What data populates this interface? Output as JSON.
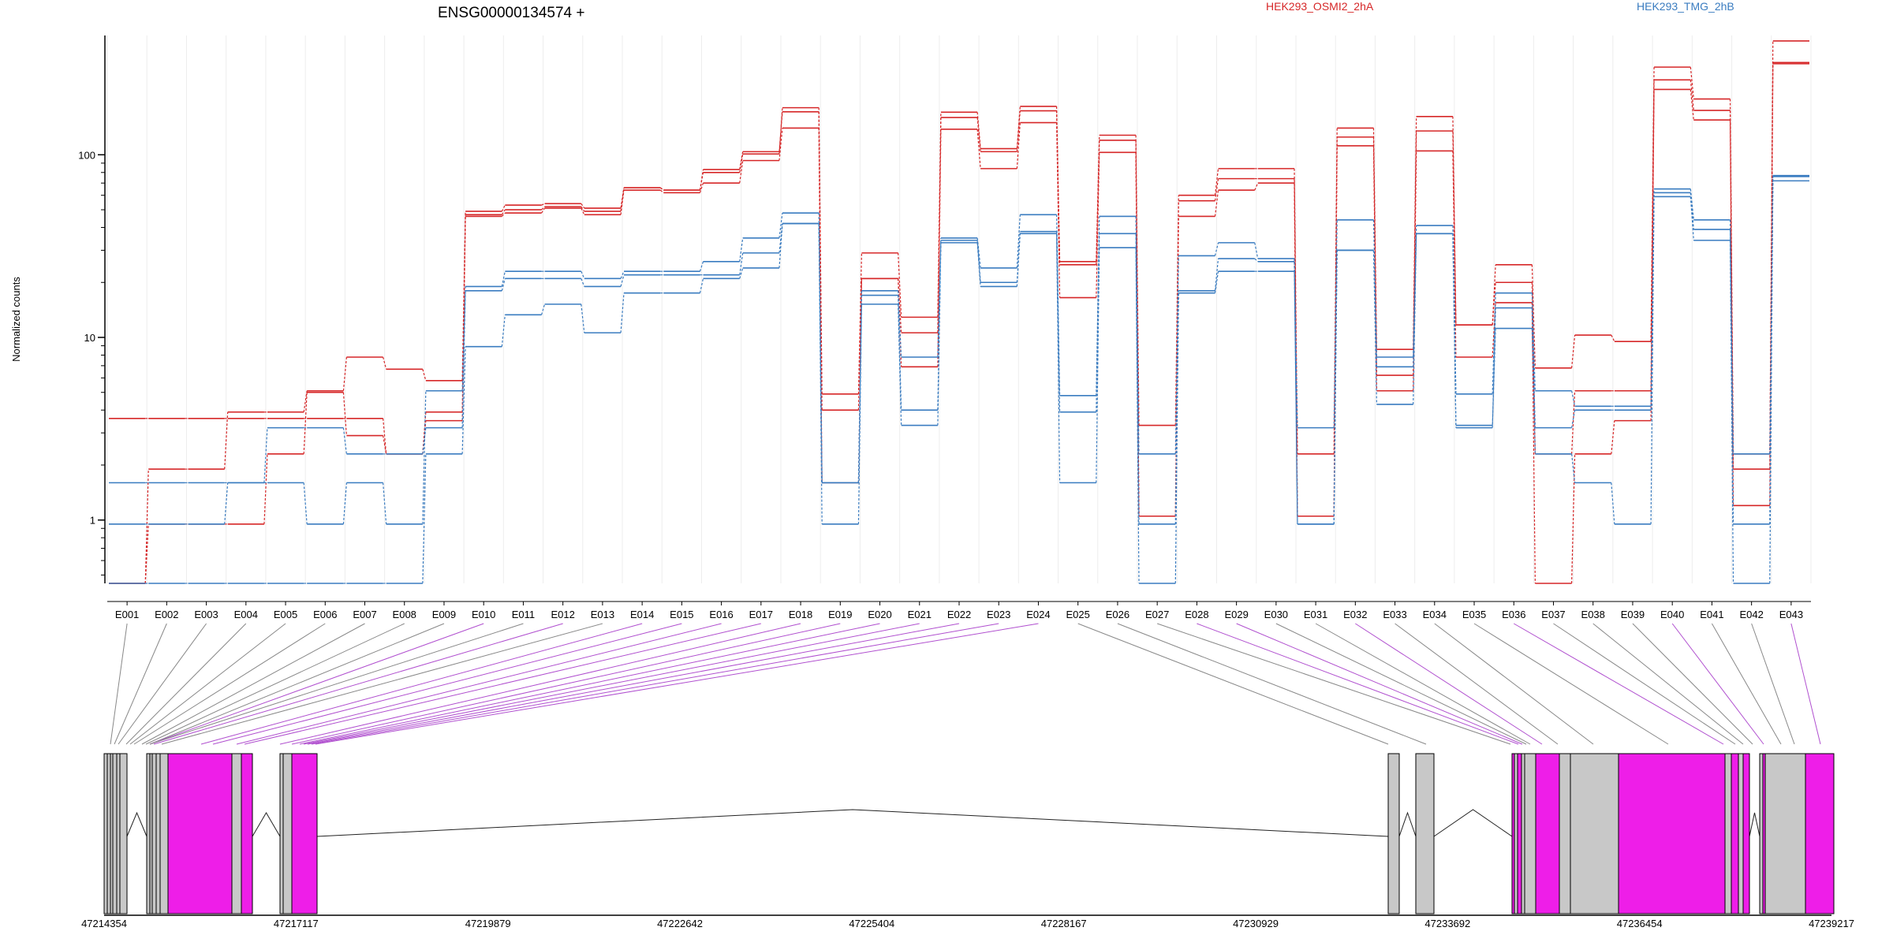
{
  "chart_data": {
    "type": "line",
    "title": "ENSG00000134574 +",
    "ylabel": "Normalized counts",
    "yscale": "log",
    "ylim": [
      0.45,
      450
    ],
    "y_ticks": [
      1,
      10,
      100
    ],
    "y_tick_labels": [
      "1",
      "10",
      "100"
    ],
    "legend": [
      {
        "name": "HEK293_OSMI2_2hA",
        "color": "#d62728"
      },
      {
        "name": "HEK293_TMG_2hB",
        "color": "#3a7cc0"
      }
    ],
    "categories": [
      "E001",
      "E002",
      "E003",
      "E004",
      "E005",
      "E006",
      "E007",
      "E008",
      "E009",
      "E010",
      "E011",
      "E012",
      "E013",
      "E014",
      "E015",
      "E016",
      "E017",
      "E018",
      "E019",
      "E020",
      "E021",
      "E022",
      "E023",
      "E024",
      "E025",
      "E026",
      "E027",
      "E028",
      "E029",
      "E030",
      "E031",
      "E032",
      "E033",
      "E034",
      "E035",
      "E036",
      "E037",
      "E038",
      "E039",
      "E040",
      "E041",
      "E042",
      "E043"
    ],
    "series": [
      {
        "group": "HEK293_OSMI2_2hA",
        "color": "#d62728",
        "values": [
          3.6,
          3.6,
          3.6,
          3.6,
          3.6,
          3.6,
          3.6,
          2.3,
          3.5,
          47,
          50,
          52,
          49,
          66,
          64,
          80,
          101,
          181,
          4.9,
          29,
          12.9,
          171,
          108,
          184,
          26,
          128,
          3.3,
          60,
          84,
          84,
          2.3,
          140,
          8.6,
          162,
          11.7,
          25,
          6.8,
          10.3,
          9.5,
          302,
          202,
          2.3,
          420
        ]
      },
      {
        "group": "HEK293_OSMI2_2hA",
        "color": "#d62728",
        "values": [
          0.45,
          1.9,
          1.9,
          3.9,
          3.9,
          5.1,
          7.8,
          6.7,
          5.8,
          49,
          53,
          54,
          51,
          66,
          64,
          83,
          104,
          172,
          4.0,
          21,
          10.6,
          160,
          104,
          174,
          25,
          120,
          1.05,
          56,
          74,
          74,
          1.05,
          125,
          6.2,
          135,
          11.7,
          20,
          2.3,
          5.1,
          5.1,
          257,
          175,
          1.9,
          320
        ]
      },
      {
        "group": "HEK293_OSMI2_2hA",
        "color": "#d62728",
        "values": [
          0.45,
          0.95,
          0.95,
          0.95,
          2.3,
          5.0,
          2.9,
          2.3,
          3.9,
          46,
          48,
          51,
          47,
          64,
          62,
          70,
          93,
          140,
          1.6,
          21,
          6.9,
          138,
          84,
          150,
          16.5,
          103,
          1.05,
          46,
          64,
          70,
          1.05,
          112,
          5.1,
          105,
          7.8,
          15.5,
          0.45,
          2.3,
          3.5,
          228,
          155,
          1.2,
          315
        ]
      },
      {
        "group": "HEK293_TMG_2hB",
        "color": "#3a7cc0",
        "values": [
          1.6,
          1.6,
          1.6,
          1.6,
          1.6,
          0.95,
          1.6,
          0.95,
          5.1,
          19,
          23,
          23,
          21,
          23,
          23,
          26,
          35,
          48,
          1.6,
          18,
          7.8,
          35,
          24,
          47,
          4.8,
          46,
          2.3,
          28,
          33,
          27,
          3.2,
          44,
          7.8,
          41,
          4.9,
          17.5,
          5.1,
          4.2,
          4.2,
          65,
          44,
          0.95,
          77
        ]
      },
      {
        "group": "HEK293_TMG_2hB",
        "color": "#3a7cc0",
        "values": [
          0.95,
          0.95,
          0.95,
          1.6,
          3.2,
          3.2,
          2.3,
          2.3,
          3.2,
          18,
          21,
          21,
          19,
          22,
          22,
          22,
          29,
          42,
          1.6,
          17,
          4.0,
          34,
          20,
          38,
          3.9,
          37,
          0.95,
          18,
          27,
          26,
          0.95,
          30,
          6.9,
          37,
          3.2,
          14.5,
          3.2,
          4.0,
          4.0,
          62,
          39,
          2.3,
          76
        ]
      },
      {
        "group": "HEK293_TMG_2hB",
        "color": "#3a7cc0",
        "values": [
          0.45,
          0.45,
          0.45,
          0.45,
          0.45,
          0.45,
          0.45,
          0.45,
          2.3,
          8.9,
          13.3,
          15.2,
          10.6,
          17.5,
          17.5,
          21,
          24,
          42,
          0.95,
          15.2,
          3.3,
          33,
          19,
          37,
          1.6,
          31,
          0.45,
          17.5,
          23,
          23,
          0.95,
          30,
          4.3,
          37,
          3.3,
          11.2,
          2.3,
          1.6,
          0.95,
          59,
          34,
          0.45,
          72
        ]
      }
    ],
    "gene_model": {
      "coordinate_labels": [
        "47214354",
        "47217117",
        "47219879",
        "47222642",
        "47225404",
        "47228167",
        "47230929",
        "47233692",
        "47236454",
        "47239217"
      ]
    }
  }
}
